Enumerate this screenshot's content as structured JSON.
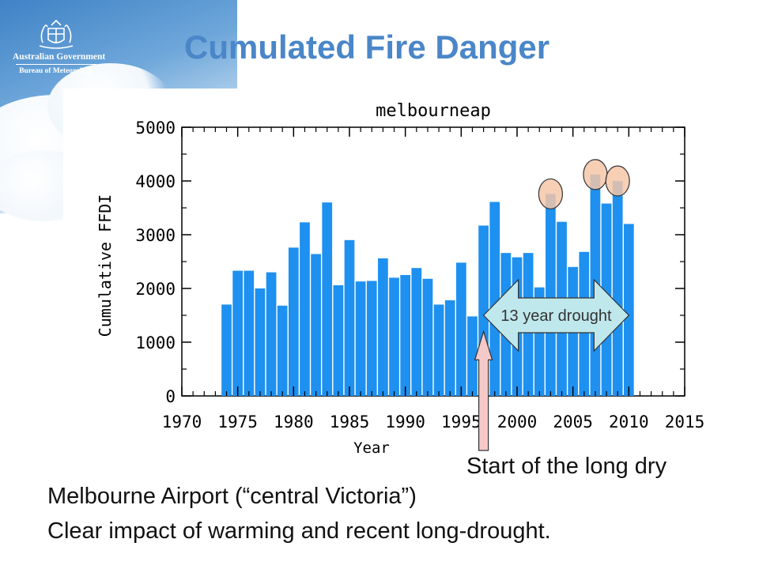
{
  "slide": {
    "title": "Cumulated Fire Danger",
    "logo": {
      "government": "Australian Government",
      "agency": "Bureau of Meteorology"
    },
    "callouts": {
      "drought_arrow_label": "13 year drought",
      "dry_start_label": "Start of the long dry"
    },
    "captions": [
      "Melbourne Airport (“central Victoria”)",
      "Clear impact of warming and recent long-drought."
    ]
  },
  "colors": {
    "title": "#4a86c8",
    "bar": "#1e90f0",
    "highlight_circle": "#f5c7a8",
    "drought_arrow": "#bfe8ec",
    "start_arrow": "#f6c9c9"
  },
  "chart_data": {
    "type": "bar",
    "title": "melbourneap",
    "xlabel": "Year",
    "ylabel": "Cumulative FFDI",
    "xlim": [
      1970,
      2015
    ],
    "ylim": [
      0,
      5000
    ],
    "x_ticks": [
      1970,
      1975,
      1980,
      1985,
      1990,
      1995,
      2000,
      2005,
      2010,
      2015
    ],
    "y_ticks": [
      0,
      1000,
      2000,
      3000,
      4000,
      5000
    ],
    "grid": false,
    "x": [
      1974,
      1975,
      1976,
      1977,
      1978,
      1979,
      1980,
      1981,
      1982,
      1983,
      1984,
      1985,
      1986,
      1987,
      1988,
      1989,
      1990,
      1991,
      1992,
      1993,
      1994,
      1995,
      1996,
      1997,
      1998,
      1999,
      2000,
      2001,
      2002,
      2003,
      2004,
      2005,
      2006,
      2007,
      2008,
      2009,
      2010
    ],
    "values": [
      1700,
      2330,
      2330,
      2000,
      2300,
      1680,
      2760,
      3230,
      2640,
      3600,
      2060,
      2900,
      2130,
      2140,
      2560,
      2200,
      2250,
      2380,
      2180,
      1700,
      1780,
      2480,
      1480,
      3170,
      3610,
      2660,
      2580,
      2660,
      2020,
      3760,
      3240,
      2400,
      2680,
      4120,
      3580,
      4000,
      3200
    ],
    "highlighted_years": [
      2003,
      2007,
      2009
    ],
    "drought_span": [
      1997,
      2010
    ],
    "drought_start_year": 1997
  }
}
